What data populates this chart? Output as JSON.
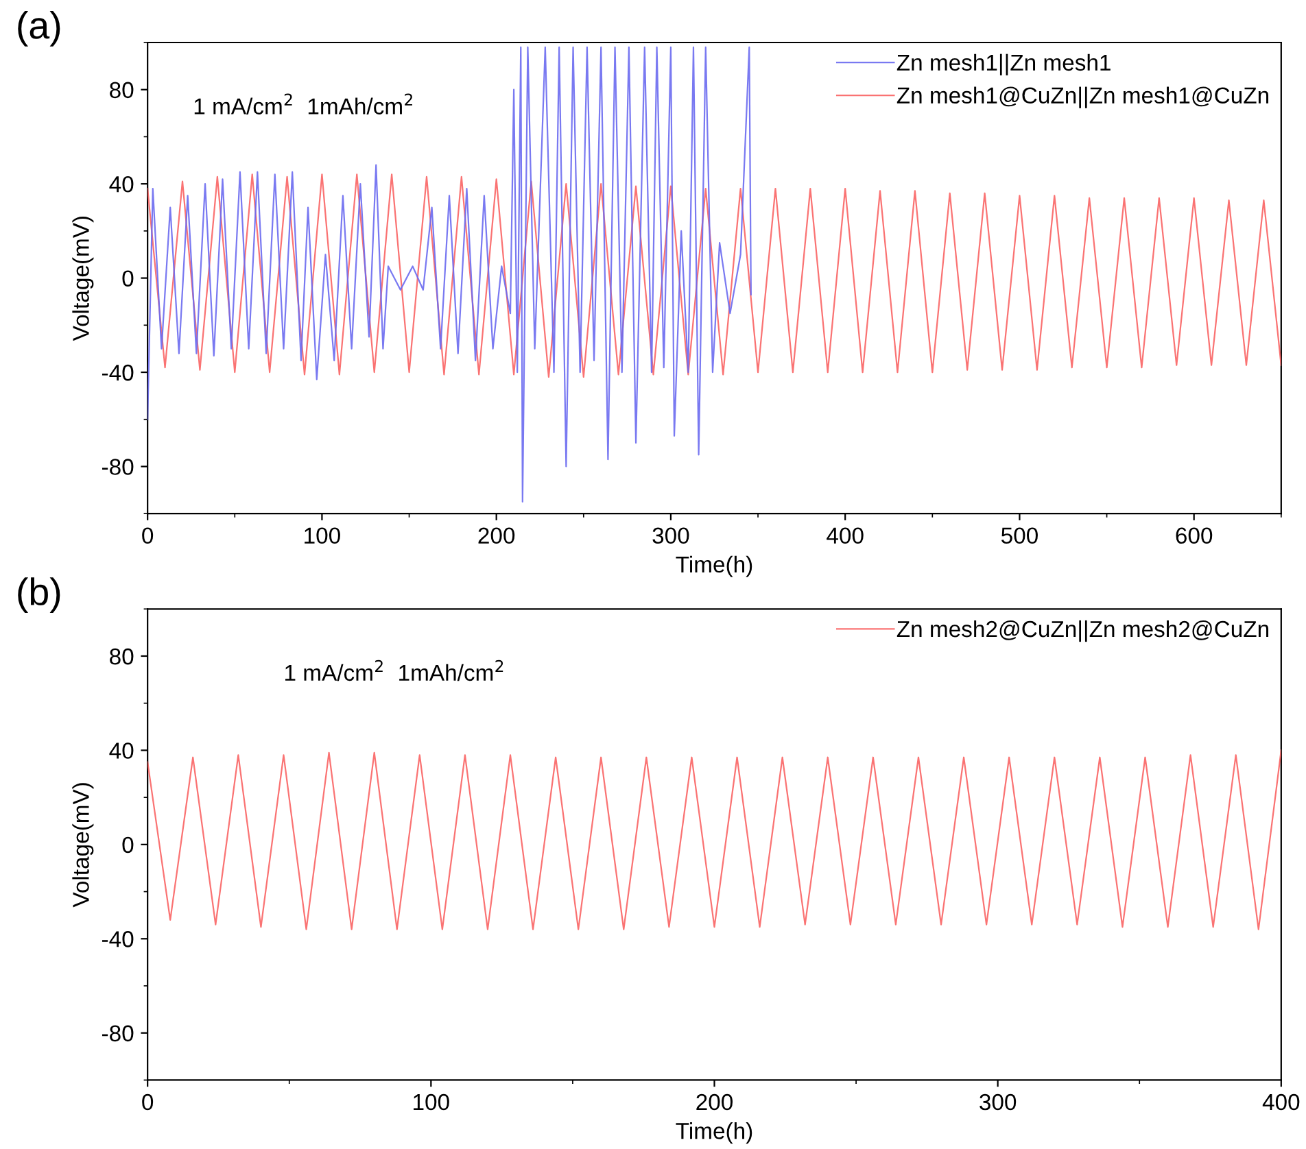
{
  "chart_data": [
    {
      "type": "line",
      "xlabel": "Time(h)",
      "ylabel": "Voltage(mV)",
      "annotations": [
        "(a)",
        "1 mA/cm$^{2}$  1mAh/cm$^{2}$"
      ],
      "xlim": [
        0,
        650
      ],
      "xticks": [
        0,
        100,
        200,
        300,
        400,
        500,
        600
      ],
      "ylim": [
        -100,
        100
      ],
      "yticks": [
        -80,
        -40,
        0,
        40,
        80
      ],
      "grid": false,
      "legend": "top right",
      "series": [
        {
          "name": "Zn mesh1||Zn mesh1",
          "color": "#6a6af0",
          "x": [
            0,
            3,
            8,
            13,
            18,
            23,
            28,
            33,
            38,
            43,
            48,
            53,
            58,
            63,
            68,
            73,
            78,
            83,
            88,
            92,
            97,
            102,
            107,
            112,
            117,
            122,
            127,
            131,
            135,
            138,
            145,
            152,
            158,
            163,
            168,
            173,
            178,
            183,
            188,
            193,
            198,
            203,
            208,
            210,
            212,
            214,
            215,
            218,
            222,
            228,
            233,
            236,
            240,
            244,
            248,
            252,
            256,
            260,
            264,
            268,
            272,
            276,
            280,
            285,
            289,
            292,
            296,
            300,
            302,
            306,
            310,
            313,
            316,
            320,
            324,
            328,
            334,
            340,
            345,
            346
          ],
          "values": [
            -60,
            38,
            -30,
            30,
            -32,
            35,
            -32,
            40,
            -33,
            42,
            -30,
            45,
            -30,
            45,
            -32,
            44,
            -30,
            45,
            -35,
            30,
            -43,
            10,
            -35,
            35,
            -30,
            40,
            -25,
            48,
            -30,
            5,
            -5,
            5,
            -5,
            30,
            -30,
            35,
            -32,
            38,
            -35,
            35,
            -30,
            5,
            -15,
            80,
            -40,
            98,
            -95,
            98,
            -30,
            98,
            -40,
            98,
            -80,
            98,
            -40,
            98,
            -35,
            98,
            -77,
            98,
            -40,
            98,
            -70,
            98,
            -40,
            98,
            -38,
            98,
            -67,
            20,
            -40,
            98,
            -75,
            98,
            -40,
            15,
            -15,
            10,
            98,
            -7
          ]
        },
        {
          "name": "Zn mesh1@CuZn||Zn mesh1@CuZn",
          "color": "#fa6464",
          "x": [
            0,
            10,
            20,
            30,
            40,
            50,
            60,
            70,
            80,
            90,
            100,
            110,
            120,
            130,
            140,
            150,
            160,
            170,
            180,
            190,
            200,
            210,
            220,
            230,
            240,
            250,
            260,
            270,
            280,
            290,
            300,
            310,
            320,
            330,
            340,
            350,
            360,
            370,
            380,
            390,
            400,
            410,
            420,
            430,
            440,
            450,
            460,
            470,
            480,
            490,
            500,
            510,
            520,
            530,
            540,
            550,
            560,
            570,
            580,
            590,
            600,
            610,
            620,
            630,
            640,
            650
          ],
          "values": [
            38,
            -38,
            41,
            -39,
            43,
            -40,
            44,
            -40,
            43,
            -41,
            44,
            -41,
            44,
            -40,
            44,
            -40,
            43,
            -41,
            43,
            -41,
            42,
            -41,
            41,
            -42,
            40,
            -42,
            40,
            -41,
            39,
            -41,
            39,
            -41,
            38,
            -41,
            38,
            -40,
            38,
            -40,
            38,
            -40,
            38,
            -40,
            37,
            -40,
            37,
            -40,
            36,
            -39,
            36,
            -39,
            35,
            -39,
            35,
            -38,
            34,
            -38,
            34,
            -38,
            34,
            -37,
            34,
            -37,
            33,
            -37,
            33,
            -37
          ]
        }
      ]
    },
    {
      "type": "line",
      "xlabel": "Time(h)",
      "ylabel": "Voltage(mV)",
      "annotations": [
        "(b)",
        "1 mA/cm$^{2}$  1mAh/cm$^{2}$"
      ],
      "xlim": [
        0,
        400
      ],
      "xticks": [
        0,
        100,
        200,
        300,
        400
      ],
      "ylim": [
        -100,
        100
      ],
      "yticks": [
        -80,
        -40,
        0,
        40,
        80
      ],
      "grid": false,
      "legend": "top right",
      "series": [
        {
          "name": "Zn mesh2@CuZn||Zn mesh2@CuZn",
          "color": "#fa6464",
          "x": [
            0,
            8,
            16,
            24,
            32,
            40,
            48,
            56,
            64,
            72,
            80,
            88,
            96,
            104,
            112,
            120,
            128,
            136,
            144,
            152,
            160,
            168,
            176,
            184,
            192,
            200,
            208,
            216,
            224,
            232,
            240,
            248,
            256,
            264,
            272,
            280,
            288,
            296,
            304,
            312,
            320,
            328,
            336,
            344,
            352,
            360,
            368,
            376,
            384,
            392,
            400
          ],
          "values": [
            35,
            -32,
            37,
            -34,
            38,
            -35,
            38,
            -36,
            39,
            -36,
            39,
            -36,
            38,
            -36,
            38,
            -36,
            38,
            -36,
            37,
            -36,
            37,
            -36,
            37,
            -35,
            37,
            -35,
            37,
            -35,
            37,
            -34,
            37,
            -34,
            37,
            -34,
            37,
            -34,
            37,
            -34,
            37,
            -34,
            37,
            -34,
            37,
            -35,
            37,
            -35,
            38,
            -35,
            38,
            -36,
            40
          ]
        }
      ]
    }
  ]
}
